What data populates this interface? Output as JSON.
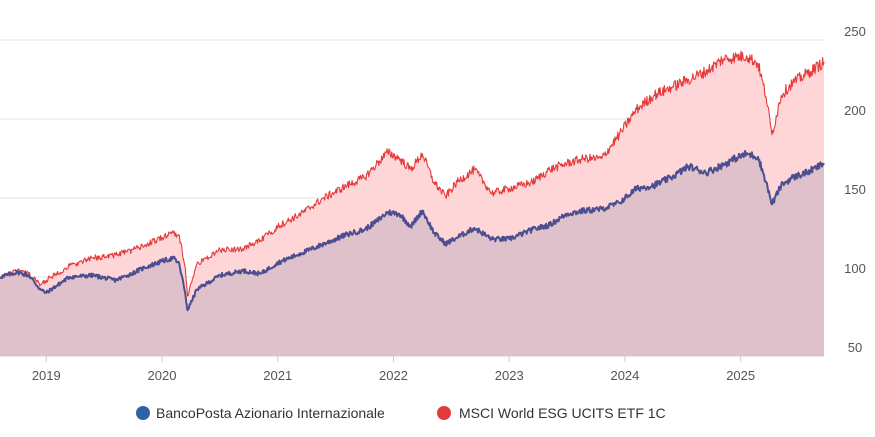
{
  "chart_data": {
    "type": "area",
    "title": "",
    "xlabel": "",
    "ylabel": "",
    "x_ticks": [
      "2019",
      "2020",
      "2021",
      "2022",
      "2023",
      "2024",
      "2025"
    ],
    "y_ticks": [
      50,
      100,
      150,
      200,
      250
    ],
    "ylim": [
      50,
      250
    ],
    "xlim": [
      2018.6,
      2025.72
    ],
    "grid": "horizontal",
    "legend_position": "bottom",
    "series": [
      {
        "name": "BancoPosta Azionario Internazionale",
        "color": "#2f62a8",
        "line_color": "#4c4f8f",
        "fill": "#dbbfca",
        "x": [
          2018.6,
          2018.75,
          2018.85,
          2018.95,
          2019.0,
          2019.2,
          2019.4,
          2019.6,
          2019.7,
          2019.85,
          2020.0,
          2020.1,
          2020.15,
          2020.2,
          2020.22,
          2020.3,
          2020.5,
          2020.7,
          2020.85,
          2021.0,
          2021.2,
          2021.4,
          2021.6,
          2021.75,
          2021.85,
          2021.95,
          2022.05,
          2022.15,
          2022.25,
          2022.35,
          2022.45,
          2022.55,
          2022.7,
          2022.85,
          2023.0,
          2023.2,
          2023.35,
          2023.5,
          2023.65,
          2023.8,
          2023.95,
          2024.1,
          2024.25,
          2024.4,
          2024.55,
          2024.7,
          2024.85,
          2024.95,
          2025.05,
          2025.15,
          2025.22,
          2025.27,
          2025.35,
          2025.45,
          2025.6,
          2025.72
        ],
        "values": [
          100,
          103,
          101,
          92,
          90,
          100,
          101,
          98,
          101,
          106,
          110,
          112,
          108,
          90,
          79,
          92,
          101,
          104,
          102,
          109,
          115,
          121,
          127,
          130,
          135,
          141,
          140,
          132,
          142,
          128,
          121,
          125,
          131,
          124,
          124,
          130,
          133,
          140,
          142,
          143,
          147,
          156,
          158,
          163,
          170,
          166,
          171,
          175,
          178,
          176,
          160,
          146,
          158,
          163,
          167,
          172
        ]
      },
      {
        "name": "MSCI World ESG UCITS ETF 1C",
        "color": "#e53a3a",
        "line_color": "#e53a3a",
        "fill": "#ffd6d8",
        "x": [
          2018.6,
          2018.75,
          2018.85,
          2018.95,
          2019.0,
          2019.2,
          2019.4,
          2019.6,
          2019.7,
          2019.85,
          2020.0,
          2020.1,
          2020.15,
          2020.2,
          2020.22,
          2020.3,
          2020.5,
          2020.7,
          2020.85,
          2021.0,
          2021.2,
          2021.4,
          2021.6,
          2021.75,
          2021.85,
          2021.95,
          2022.05,
          2022.15,
          2022.25,
          2022.35,
          2022.45,
          2022.55,
          2022.7,
          2022.85,
          2023.0,
          2023.2,
          2023.35,
          2023.5,
          2023.65,
          2023.8,
          2023.95,
          2024.1,
          2024.25,
          2024.4,
          2024.55,
          2024.7,
          2024.85,
          2024.95,
          2025.05,
          2025.15,
          2025.22,
          2025.27,
          2025.35,
          2025.45,
          2025.6,
          2025.72
        ],
        "values": [
          100,
          104,
          102,
          95,
          98,
          107,
          112,
          114,
          116,
          120,
          125,
          128,
          126,
          106,
          88,
          108,
          117,
          118,
          123,
          132,
          140,
          150,
          158,
          163,
          171,
          179,
          175,
          168,
          178,
          160,
          151,
          160,
          168,
          153,
          156,
          160,
          168,
          172,
          175,
          175,
          190,
          206,
          215,
          220,
          225,
          230,
          238,
          239,
          240,
          235,
          214,
          190,
          215,
          223,
          230,
          236
        ]
      }
    ]
  }
}
